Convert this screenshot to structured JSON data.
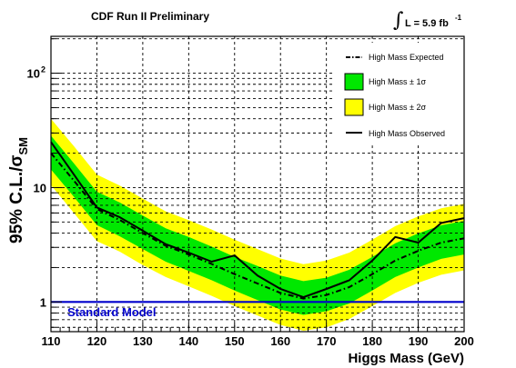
{
  "header": {
    "title": "CDF Run II Preliminary",
    "lumi_integral": "∫",
    "lumi_text": "L = 5.9 fb",
    "lumi_exp": "-1"
  },
  "colors": {
    "band_2sigma": "#ffff00",
    "band_1sigma": "#00e800",
    "observed": "#000000",
    "expected": "#000000",
    "standard_model": "#0000cc",
    "grid": "#000000"
  },
  "chart_data": {
    "type": "line",
    "xlabel": "Higgs Mass (GeV)",
    "ylabel": "95% C.L./σSM",
    "ylabel_main": "95% C.L./σ",
    "ylabel_sub": "SM",
    "xlim": [
      110,
      200
    ],
    "ylim": [
      0.55,
      210
    ],
    "yscale": "log",
    "grid": true,
    "legend_position": "top-right",
    "x_ticks": [
      "110",
      "120",
      "130",
      "140",
      "150",
      "160",
      "170",
      "180",
      "190",
      "200"
    ],
    "y_ticks": [
      {
        "value": 1,
        "label": "1"
      },
      {
        "value": 10,
        "label": "10"
      },
      {
        "value": 100,
        "label": "10",
        "exp": "2"
      }
    ],
    "x": [
      110,
      115,
      120,
      125,
      130,
      135,
      140,
      145,
      150,
      155,
      160,
      165,
      170,
      175,
      180,
      185,
      190,
      195,
      200
    ],
    "series": [
      {
        "name": "High Mass Expected",
        "style": "dash-dot",
        "values": [
          20,
          11.5,
          6.5,
          5.2,
          4.0,
          3.1,
          2.6,
          2.15,
          1.75,
          1.45,
          1.2,
          1.07,
          1.15,
          1.35,
          1.75,
          2.3,
          2.8,
          3.3,
          3.6
        ]
      },
      {
        "name": "High Mass Observed",
        "style": "solid",
        "values": [
          25,
          13,
          6.7,
          5.5,
          4.2,
          3.2,
          2.7,
          2.25,
          2.55,
          1.7,
          1.3,
          1.1,
          1.3,
          1.55,
          2.3,
          3.7,
          3.3,
          4.9,
          5.4
        ]
      }
    ],
    "bands": [
      {
        "name": "High Mass ± 2σ",
        "lower": [
          10.5,
          6.0,
          3.4,
          2.75,
          2.1,
          1.65,
          1.37,
          1.13,
          0.92,
          0.76,
          0.63,
          0.56,
          0.6,
          0.71,
          0.92,
          1.2,
          1.47,
          1.73,
          1.89
        ],
        "upper": [
          40,
          23,
          13,
          10.4,
          8.0,
          6.2,
          5.2,
          4.3,
          3.5,
          2.9,
          2.4,
          2.14,
          2.3,
          2.7,
          3.5,
          4.6,
          5.6,
          6.6,
          7.2
        ]
      },
      {
        "name": "High Mass ± 1σ",
        "lower": [
          14.4,
          8.3,
          4.7,
          3.75,
          2.9,
          2.25,
          1.87,
          1.55,
          1.26,
          1.04,
          0.86,
          0.77,
          0.83,
          0.97,
          1.26,
          1.65,
          2.0,
          2.38,
          2.6
        ],
        "upper": [
          28.4,
          16.3,
          9.2,
          7.4,
          5.7,
          4.4,
          3.7,
          3.05,
          2.48,
          2.06,
          1.7,
          1.52,
          1.63,
          1.91,
          2.48,
          3.26,
          3.97,
          4.68,
          5.1
        ]
      }
    ],
    "reference_line": {
      "value": 1,
      "label": "Standard Model"
    },
    "legend": [
      {
        "label": "High Mass Expected",
        "kind": "dashdot"
      },
      {
        "label": "High Mass ± 1σ",
        "kind": "green"
      },
      {
        "label": "High Mass ± 2σ",
        "kind": "yellow"
      },
      {
        "label": "High Mass Observed",
        "kind": "solid"
      }
    ]
  }
}
